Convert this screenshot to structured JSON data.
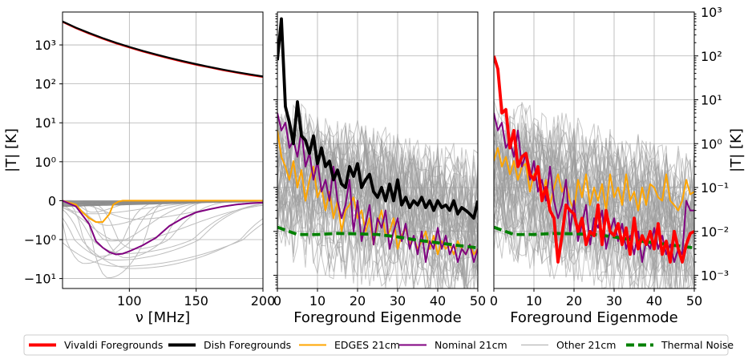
{
  "chart_data": [
    {
      "type": "line",
      "panel": "left",
      "xlabel": "ν [MHz]",
      "ylabel": "|T| [K]",
      "yscale": "symlog",
      "x_ticks": [
        "100",
        "150",
        "200"
      ],
      "y_ticks": [
        "10³",
        "10²",
        "10¹",
        "10⁰",
        "0",
        "−10⁰",
        "−10¹"
      ],
      "xlim": [
        50,
        200
      ],
      "grid": true,
      "series": [
        {
          "name": "Vivaldi Foregrounds",
          "x": [
            50,
            60,
            70,
            80,
            90,
            100,
            110,
            120,
            130,
            140,
            150,
            160,
            170,
            180,
            190,
            200
          ],
          "y": [
            3900,
            2700,
            1950,
            1450,
            1100,
            860,
            680,
            550,
            450,
            370,
            310,
            265,
            225,
            195,
            170,
            150
          ]
        },
        {
          "name": "Dish Foregrounds",
          "x": [
            50,
            60,
            70,
            80,
            90,
            100,
            110,
            120,
            130,
            140,
            150,
            160,
            170,
            180,
            190,
            200
          ],
          "y": [
            4000,
            2780,
            2020,
            1500,
            1140,
            890,
            705,
            570,
            465,
            385,
            322,
            273,
            233,
            201,
            176,
            155
          ]
        },
        {
          "name": "EDGES 21cm",
          "x": [
            50,
            60,
            65,
            70,
            75,
            80,
            85,
            88,
            92,
            95,
            100,
            120,
            150,
            200
          ],
          "y": [
            0,
            -0.1,
            -0.3,
            -0.45,
            -0.55,
            -0.55,
            -0.35,
            -0.1,
            -0.02,
            0,
            0,
            0,
            0,
            0
          ]
        },
        {
          "name": "Nominal 21cm",
          "x": [
            50,
            60,
            70,
            75,
            80,
            85,
            90,
            95,
            100,
            110,
            120,
            130,
            140,
            150,
            160,
            170,
            180,
            190,
            200
          ],
          "y": [
            0,
            -0.15,
            -0.6,
            -1.1,
            -1.6,
            -2.1,
            -2.4,
            -2.3,
            -2.0,
            -1.4,
            -0.95,
            -0.65,
            -0.45,
            -0.3,
            -0.22,
            -0.15,
            -0.1,
            -0.07,
            -0.05
          ]
        }
      ]
    },
    {
      "type": "line",
      "panel": "middle",
      "xlabel": "Foreground Eigenmode",
      "yscale": "log",
      "x_ticks": [
        "0",
        "10",
        "20",
        "30",
        "40",
        "50"
      ],
      "xlim": [
        0,
        50
      ],
      "ylim": [
        0.0005,
        1000
      ],
      "grid": true,
      "series": [
        {
          "name": "Dish Foregrounds",
          "x": [
            0,
            1,
            2,
            3,
            4,
            5,
            6,
            7,
            8,
            9,
            10,
            11,
            12,
            13,
            14,
            15,
            16,
            17,
            18,
            19,
            20,
            21,
            22,
            23,
            24,
            25,
            26,
            27,
            28,
            29,
            30,
            31,
            32,
            33,
            34,
            35,
            36,
            37,
            38,
            39,
            40,
            41,
            42,
            43,
            44,
            45,
            46,
            47,
            48,
            49,
            50
          ],
          "y": [
            80,
            700,
            7,
            3,
            1,
            9,
            1.5,
            1.2,
            0.6,
            1.5,
            0.35,
            0.8,
            0.3,
            0.4,
            0.15,
            0.25,
            0.12,
            0.1,
            0.3,
            0.18,
            0.35,
            0.1,
            0.15,
            0.2,
            0.08,
            0.06,
            0.1,
            0.05,
            0.12,
            0.05,
            0.15,
            0.04,
            0.06,
            0.035,
            0.05,
            0.04,
            0.06,
            0.035,
            0.05,
            0.03,
            0.05,
            0.035,
            0.04,
            0.03,
            0.05,
            0.025,
            0.035,
            0.03,
            0.025,
            0.02,
            0.05
          ]
        },
        {
          "name": "Nominal 21cm",
          "x": [
            0,
            1,
            2,
            3,
            4,
            5,
            6,
            7,
            8,
            9,
            10,
            11,
            12,
            13,
            14,
            15,
            16,
            17,
            18,
            19,
            20,
            21,
            22,
            23,
            24,
            25,
            26,
            27,
            28,
            29,
            30,
            31,
            32,
            33,
            34,
            35,
            36,
            37,
            38,
            39,
            40,
            41,
            42,
            43,
            44,
            45,
            46,
            47,
            48,
            49,
            50
          ],
          "y": [
            5,
            2,
            3,
            0.8,
            1.2,
            0.5,
            2,
            0.3,
            0.6,
            0.15,
            0.4,
            0.08,
            0.15,
            0.05,
            0.3,
            0.05,
            0.02,
            0.04,
            0.15,
            0.01,
            0.05,
            0.006,
            0.015,
            0.04,
            0.005,
            0.02,
            0.012,
            0.03,
            0.004,
            0.01,
            0.02,
            0.006,
            0.015,
            0.004,
            0.008,
            0.003,
            0.01,
            0.002,
            0.006,
            0.004,
            0.012,
            0.004,
            0.008,
            0.003,
            0.005,
            0.002,
            0.004,
            0.003,
            0.005,
            0.002,
            0.004
          ]
        },
        {
          "name": "EDGES 21cm",
          "x": [
            0,
            1,
            2,
            3,
            4,
            5,
            6,
            7,
            8,
            9,
            10,
            11,
            12,
            13,
            14,
            15,
            16,
            17,
            18,
            19,
            20,
            21,
            22,
            23,
            24,
            25,
            26,
            27,
            28,
            29,
            30,
            31,
            32,
            33,
            34,
            35,
            36,
            37,
            38,
            39,
            40,
            41,
            42,
            43,
            44,
            45,
            46,
            47,
            48,
            49,
            50
          ],
          "y": [
            2,
            0.5,
            0.3,
            0.15,
            0.4,
            0.1,
            0.25,
            0.05,
            0.15,
            0.3,
            0.06,
            0.1,
            0.03,
            0.08,
            0.02,
            0.05,
            0.01,
            0.03,
            0.04,
            0.06,
            0.02,
            0.03,
            0.01,
            0.02,
            0.005,
            0.015,
            0.03,
            0.008,
            0.01,
            0.02,
            0.004,
            0.008,
            0.012,
            0.005,
            0.007,
            0.004,
            0.006,
            0.01,
            0.004,
            0.008,
            0.003,
            0.006,
            0.004,
            0.005,
            0.003,
            0.006,
            0.004,
            0.003,
            0.005,
            0.003,
            0.004
          ]
        },
        {
          "name": "Thermal Noise",
          "x": [
            0,
            5,
            10,
            15,
            20,
            25,
            30,
            35,
            40,
            45,
            50
          ],
          "y": [
            0.0125,
            0.0085,
            0.0085,
            0.009,
            0.0088,
            0.0085,
            0.0075,
            0.0063,
            0.0055,
            0.0048,
            0.0042
          ]
        }
      ]
    },
    {
      "type": "line",
      "panel": "right",
      "xlabel": "Foreground Eigenmode",
      "ylabel": "|T| [K]",
      "yscale": "log",
      "y_ticks": [
        "10³",
        "10²",
        "10¹",
        "10⁰",
        "10⁻¹",
        "10⁻²",
        "10⁻³"
      ],
      "x_ticks": [
        "0",
        "10",
        "20",
        "30",
        "40",
        "50"
      ],
      "xlim": [
        0,
        50
      ],
      "ylim": [
        0.0005,
        1000
      ],
      "grid": true,
      "series": [
        {
          "name": "Vivaldi Foregrounds",
          "x": [
            0,
            1,
            2,
            3,
            4,
            5,
            6,
            7,
            8,
            9,
            10,
            11,
            12,
            13,
            14,
            15,
            16,
            17,
            18,
            19,
            20,
            21,
            22,
            23,
            24,
            25,
            26,
            27,
            28,
            29,
            30,
            31,
            32,
            33,
            34,
            35,
            36,
            37,
            38,
            39,
            40,
            41,
            42,
            43,
            44,
            45,
            46,
            47,
            48,
            49,
            50
          ],
          "y": [
            100,
            50,
            5,
            6,
            0.8,
            2,
            0.3,
            0.5,
            0.6,
            0.2,
            0.15,
            0.3,
            0.05,
            0.1,
            0.03,
            0.02,
            0.002,
            0.008,
            0.04,
            0.03,
            0.025,
            0.01,
            0.02,
            0.005,
            0.01,
            0.008,
            0.04,
            0.005,
            0.03,
            0.01,
            0.008,
            0.015,
            0.005,
            0.012,
            0.003,
            0.02,
            0.004,
            0.008,
            0.005,
            0.01,
            0.004,
            0.015,
            0.003,
            0.006,
            0.002,
            0.01,
            0.004,
            0.002,
            0.005,
            0.009,
            0.01
          ]
        },
        {
          "name": "Nominal 21cm",
          "x": [
            0,
            1,
            2,
            3,
            4,
            5,
            6,
            7,
            8,
            9,
            10,
            11,
            12,
            13,
            14,
            15,
            16,
            17,
            18,
            19,
            20,
            21,
            22,
            23,
            24,
            25,
            26,
            27,
            28,
            29,
            30,
            31,
            32,
            33,
            34,
            35,
            36,
            37,
            38,
            39,
            40,
            41,
            42,
            43,
            44,
            45,
            46,
            47,
            48,
            49,
            50
          ],
          "y": [
            5,
            2,
            3,
            0.8,
            1.2,
            0.5,
            2,
            0.3,
            0.6,
            0.15,
            0.4,
            0.08,
            0.15,
            0.05,
            0.3,
            0.05,
            0.02,
            0.04,
            0.15,
            0.01,
            0.05,
            0.006,
            0.015,
            0.04,
            0.005,
            0.02,
            0.012,
            0.03,
            0.004,
            0.01,
            0.02,
            0.006,
            0.015,
            0.004,
            0.008,
            0.003,
            0.01,
            0.002,
            0.006,
            0.004,
            0.012,
            0.004,
            0.008,
            0.003,
            0.005,
            0.002,
            0.004,
            0.003,
            0.05,
            0.03,
            0.03
          ]
        },
        {
          "name": "EDGES 21cm",
          "x": [
            0,
            1,
            2,
            3,
            4,
            5,
            6,
            7,
            8,
            9,
            10,
            11,
            12,
            13,
            14,
            15,
            16,
            17,
            18,
            19,
            20,
            21,
            22,
            23,
            24,
            25,
            26,
            27,
            28,
            29,
            30,
            31,
            32,
            33,
            34,
            35,
            36,
            37,
            38,
            39,
            40,
            41,
            42,
            43,
            44,
            45,
            46,
            47,
            48,
            49,
            50
          ],
          "y": [
            0.4,
            0.8,
            0.3,
            0.5,
            0.2,
            0.4,
            0.15,
            0.3,
            0.35,
            0.08,
            0.2,
            0.25,
            0.06,
            0.15,
            0.04,
            0.1,
            0.2,
            0.08,
            0.12,
            0.05,
            0.03,
            0.15,
            0.06,
            0.2,
            0.04,
            0.1,
            0.05,
            0.12,
            0.03,
            0.2,
            0.06,
            0.1,
            0.04,
            0.2,
            0.05,
            0.08,
            0.03,
            0.1,
            0.04,
            0.12,
            0.1,
            0.06,
            0.05,
            0.2,
            0.05,
            0.04,
            0.03,
            0.05,
            0.15,
            0.07,
            0.08
          ]
        },
        {
          "name": "Thermal Noise",
          "x": [
            0,
            5,
            10,
            15,
            20,
            25,
            30,
            35,
            40,
            45,
            50
          ],
          "y": [
            0.0125,
            0.0085,
            0.0085,
            0.009,
            0.0088,
            0.0085,
            0.0075,
            0.0063,
            0.0055,
            0.0048,
            0.0042
          ]
        }
      ]
    }
  ],
  "legend": {
    "location": "bottom",
    "entries": [
      {
        "label": "Vivaldi Foregrounds",
        "color": "#ff0000",
        "style": "solid-thick"
      },
      {
        "label": "Dish Foregrounds",
        "color": "#000000",
        "style": "solid-thick"
      },
      {
        "label": "EDGES 21cm",
        "color": "#ffa500",
        "style": "solid"
      },
      {
        "label": "Nominal 21cm",
        "color": "#800080",
        "style": "solid"
      },
      {
        "label": "Other 21cm",
        "color": "#aaaaaa",
        "style": "thin"
      },
      {
        "label": "Thermal Noise",
        "color": "#008000",
        "style": "dashed-thick"
      }
    ]
  },
  "colors": {
    "vivaldi": "#ff0000",
    "dish": "#000000",
    "edges": "#ffa500",
    "nominal": "#800080",
    "other": "#999999",
    "thermal": "#008000",
    "grid": "#b0b0b0"
  }
}
